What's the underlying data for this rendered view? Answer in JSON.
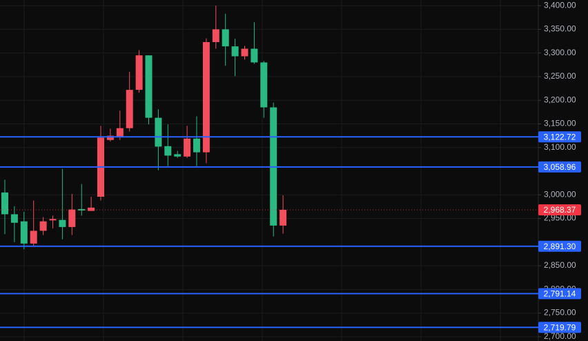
{
  "chart_data": {
    "type": "candlestick",
    "up_color": "#f24e5d",
    "down_color": "#2ab883",
    "ylim": [
      2691,
      3412
    ],
    "yticks": [
      {
        "value": 2700,
        "label": "2,700.00"
      },
      {
        "value": 2750,
        "label": "2,750.00"
      },
      {
        "value": 2800,
        "label": "2,800.00"
      },
      {
        "value": 2850,
        "label": "2,850.00"
      },
      {
        "value": 2950,
        "label": "2,950.00"
      },
      {
        "value": 3000,
        "label": "3,000.00"
      },
      {
        "value": 3100,
        "label": "3,100.00"
      },
      {
        "value": 3150,
        "label": "3,150.00"
      },
      {
        "value": 3200,
        "label": "3,200.00"
      },
      {
        "value": 3250,
        "label": "3,250.00"
      },
      {
        "value": 3300,
        "label": "3,300.00"
      },
      {
        "value": 3350,
        "label": "3,350.00"
      },
      {
        "value": 3400,
        "label": "3,400.00"
      }
    ],
    "grid": true,
    "open": [
      3005,
      2959,
      2944,
      2897,
      2924,
      2946,
      2947,
      2932,
      2970,
      2966,
      2996,
      3116,
      3122,
      3141,
      3222,
      3295,
      3163,
      3103,
      3086,
      3081,
      3119,
      3090,
      3323,
      3350,
      3314,
      3293,
      3309,
      3280,
      3185,
      2935
    ],
    "high": [
      3032,
      2976,
      2964,
      2988,
      2953,
      2956,
      3055,
      3002,
      3023,
      2996,
      3146,
      3140,
      3178,
      3260,
      3306,
      3295,
      3181,
      3149,
      3093,
      3146,
      3166,
      3331,
      3400,
      3383,
      3330,
      3315,
      3365,
      3283,
      3195,
      2999
    ],
    "low": [
      2917,
      2900,
      2885,
      2891,
      2915,
      2929,
      2906,
      2915,
      2956,
      2966,
      2988,
      3113,
      3116,
      3134,
      3216,
      3149,
      3052,
      3061,
      3078,
      3078,
      3061,
      3067,
      3309,
      3273,
      3251,
      3286,
      3277,
      3163,
      2912,
      2918
    ],
    "close": [
      2959,
      2941,
      2897,
      2924,
      2944,
      2949,
      2932,
      2969,
      2967,
      2973,
      3121,
      3125,
      3141,
      3222,
      3295,
      3163,
      3102,
      3083,
      3081,
      3119,
      3090,
      3323,
      3350,
      3314,
      3293,
      3309,
      3280,
      3185,
      2935,
      2968.37
    ],
    "levels": [
      {
        "value": 3122.72,
        "label": "3,122.72",
        "color": "#2962ff"
      },
      {
        "value": 3058.96,
        "label": "3,058.96",
        "color": "#2962ff"
      },
      {
        "value": 2891.3,
        "label": "2,891.30",
        "color": "#2962ff"
      },
      {
        "value": 2791.14,
        "label": "2,791.14",
        "color": "#2962ff"
      },
      {
        "value": 2719.79,
        "label": "2,719.79",
        "color": "#2962ff"
      }
    ],
    "last_price": {
      "value": 2968.37,
      "label": "2,968.37",
      "color": "#f23645"
    }
  }
}
